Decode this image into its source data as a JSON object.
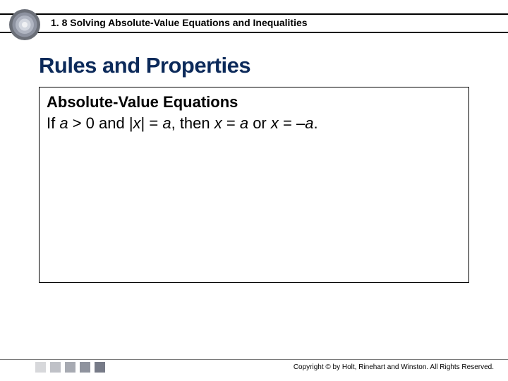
{
  "header": {
    "title": "1. 8 Solving Absolute-Value Equations and Inequalities",
    "logo_colors": {
      "outer": "#6b6f78",
      "mid1": "#8d92a0",
      "mid2": "#b0b5c2",
      "mid3": "#d2d6df",
      "center": "#f0f1f4"
    }
  },
  "section": {
    "heading": "Rules and Properties",
    "heading_color": "#0c2a5a"
  },
  "box": {
    "subtitle": "Absolute-Value Equations",
    "body_html": "If <span class='it'>a</span> &gt; 0 and |<span class='it'>x</span>| = <span class='it'>a</span>, then <span class='it'>x</span> = <span class='it'>a</span> or <span class='it'>x</span> = –<span class='it'>a</span>.",
    "border_color": "#000000",
    "background": "#ffffff"
  },
  "footer": {
    "copyright": "Copyright © by Holt, Rinehart and Winston. All Rights Reserved.",
    "square_colors": [
      "#d7d8db",
      "#bfc1c7",
      "#a7aab2",
      "#8f939e",
      "#777b88"
    ]
  }
}
